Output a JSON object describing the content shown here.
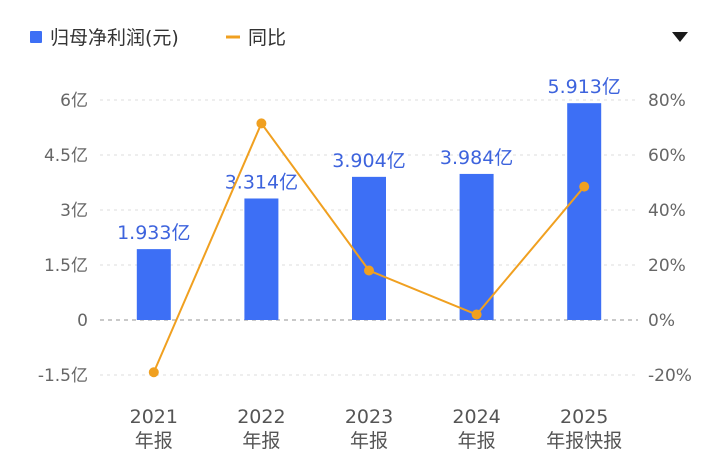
{
  "chart_data": {
    "type": "bar",
    "categories": [
      {
        "year": "2021",
        "label": "年报"
      },
      {
        "year": "2022",
        "label": "年报"
      },
      {
        "year": "2023",
        "label": "年报"
      },
      {
        "year": "2024",
        "label": "年报"
      },
      {
        "year": "2025",
        "label": "年报快报"
      }
    ],
    "series": [
      {
        "name": "归母净利润(元)",
        "type": "bar",
        "axis": "left",
        "values": [
          1.933,
          3.314,
          3.904,
          3.984,
          5.913
        ],
        "labels": [
          "1.933亿",
          "3.314亿",
          "3.904亿",
          "3.984亿",
          "5.913亿"
        ],
        "color": "#3d6ff5"
      },
      {
        "name": "同比",
        "type": "line",
        "axis": "right",
        "values": [
          -19,
          71.5,
          18,
          2,
          48.5
        ],
        "color": "#f0a020"
      }
    ],
    "y_left": {
      "min": -1.5,
      "max": 6,
      "ticks": [
        -1.5,
        0,
        1.5,
        3,
        4.5,
        6
      ],
      "tick_labels": [
        "-1.5亿",
        "0",
        "1.5亿",
        "3亿",
        "4.5亿",
        "6亿"
      ]
    },
    "y_right": {
      "min": -20,
      "max": 80,
      "ticks": [
        -20,
        0,
        20,
        40,
        60,
        80
      ],
      "tick_labels": [
        "-20%",
        "0%",
        "20%",
        "40%",
        "60%",
        "80%"
      ]
    },
    "grid": true,
    "legend_position": "top-left",
    "dropdown_icon": "caret-down-icon"
  }
}
